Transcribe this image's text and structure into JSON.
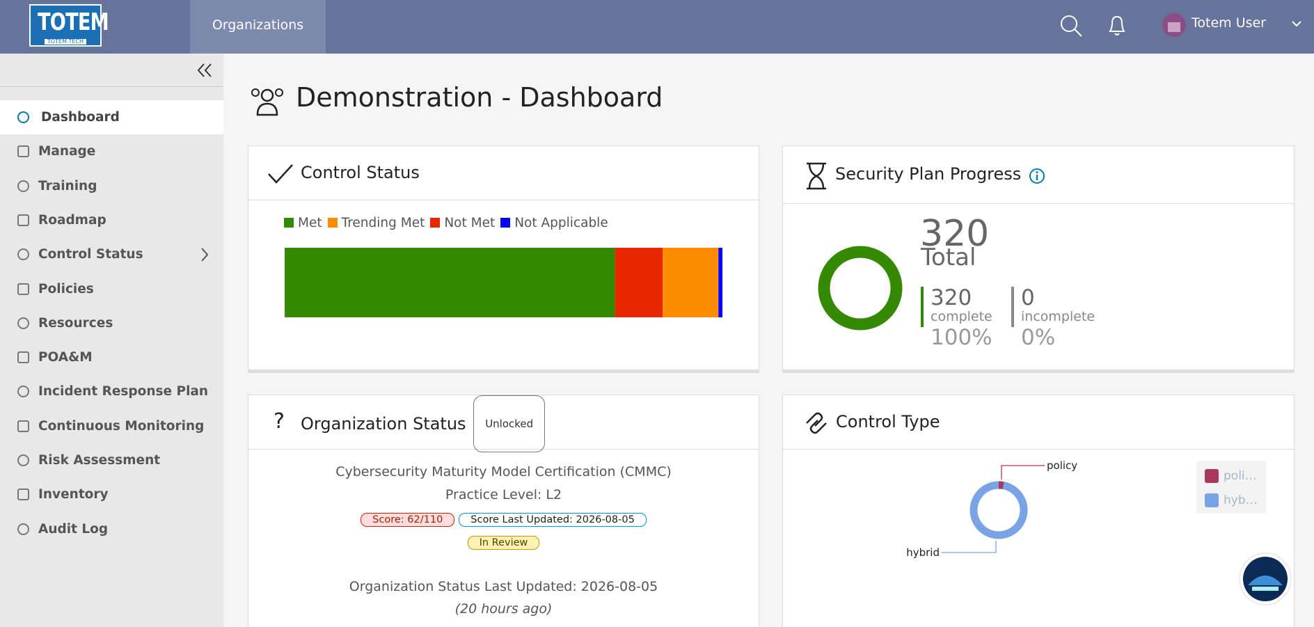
{
  "header": {
    "logo": "TOTEM",
    "logo_sub": "TOTEM.TECH",
    "nav": [
      "Organizations"
    ],
    "user": "Totem User"
  },
  "sidebar": {
    "items": [
      "Dashboard",
      "Manage",
      "Training",
      "Roadmap",
      "Control Status",
      "Policies",
      "Resources",
      "POA&M",
      "Incident Response Plan",
      "Continuous Monitoring",
      "Risk Assessment",
      "Inventory",
      "Audit Log"
    ],
    "active": 0
  },
  "page": {
    "title": "Demonstration - Dashboard"
  },
  "chart_data": [
    {
      "type": "stacked_bar",
      "title": "Control Status",
      "series": [
        {
          "name": "Met",
          "color": "#338a00",
          "values": [
            83
          ]
        },
        {
          "name": "Not Met",
          "color": "#e62700",
          "values": [
            12
          ]
        },
        {
          "name": "Trending Met",
          "color": "#ff8c00",
          "values": [
            14
          ]
        },
        {
          "name": "Not Applicable",
          "color": "#0000ff",
          "values": [
            1
          ]
        }
      ]
    },
    {
      "type": "donut",
      "title": "Security Plan Progress",
      "total": 320,
      "total_label": "Total",
      "categories": [
        "complete",
        "incomplete"
      ],
      "values": [
        320,
        0
      ],
      "value_labels": [
        "100%",
        "0%"
      ],
      "colors": [
        "#338a00",
        "#888888"
      ]
    },
    {
      "type": "donut",
      "title": "Control Type",
      "categories": [
        "policy",
        "hybrid"
      ],
      "values": [
        3,
        97
      ],
      "colors": [
        "#a8385d",
        "#7aa3e5"
      ]
    }
  ],
  "org_status": {
    "title": "Organization Status",
    "lock": "Unlocked",
    "framework": "Cybersecurity Maturity Model Certification (CMMC)",
    "level": "Practice Level: L2",
    "badges": [
      "Score: 62/110",
      "Score Last Updated: 2026-08-05",
      "In Review"
    ],
    "updated": "Organization Status Last Updated: 2026-08-05",
    "ago": "(20 hours ago)"
  }
}
